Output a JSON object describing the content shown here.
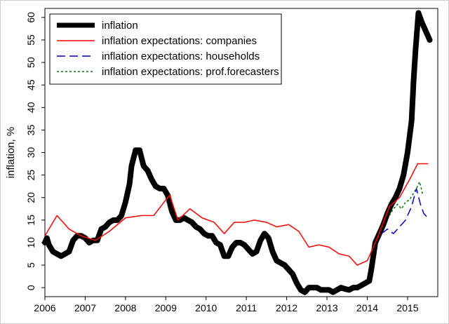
{
  "chart_data": {
    "type": "line",
    "title": "",
    "xlabel": "",
    "ylabel": "inflation, %",
    "xlim": [
      2006.0,
      2015.75
    ],
    "ylim": [
      -2,
      62
    ],
    "x_ticks": [
      2006,
      2007,
      2008,
      2009,
      2010,
      2011,
      2012,
      2013,
      2014,
      2015
    ],
    "x_tick_labels": [
      "2006",
      "2007",
      "2008",
      "2009",
      "2010",
      "2011",
      "2012",
      "2013",
      "2014",
      "2015"
    ],
    "y_ticks": [
      0,
      5,
      10,
      15,
      20,
      25,
      30,
      35,
      40,
      45,
      50,
      55,
      60
    ],
    "y_tick_labels": [
      "0",
      "5",
      "10",
      "15",
      "20",
      "25",
      "30",
      "35",
      "40",
      "45",
      "50",
      "55",
      "60"
    ],
    "grid": false,
    "legend_position": "top-left",
    "series": [
      {
        "name": "inflation",
        "label": "inflation",
        "color": "#000000",
        "style": "solid",
        "weight": "thick",
        "points": [
          [
            2006.0,
            10.0
          ],
          [
            2006.05,
            11.0
          ],
          [
            2006.1,
            9.5
          ],
          [
            2006.2,
            8.0
          ],
          [
            2006.3,
            7.5
          ],
          [
            2006.4,
            7.0
          ],
          [
            2006.5,
            7.5
          ],
          [
            2006.6,
            8.0
          ],
          [
            2006.7,
            10.5
          ],
          [
            2006.8,
            11.5
          ],
          [
            2006.9,
            11.5
          ],
          [
            2007.0,
            11.0
          ],
          [
            2007.1,
            10.0
          ],
          [
            2007.2,
            10.5
          ],
          [
            2007.3,
            10.5
          ],
          [
            2007.4,
            13.0
          ],
          [
            2007.5,
            13.5
          ],
          [
            2007.6,
            14.5
          ],
          [
            2007.7,
            15.0
          ],
          [
            2007.8,
            15.0
          ],
          [
            2007.9,
            16.0
          ],
          [
            2008.0,
            19.0
          ],
          [
            2008.1,
            23.0
          ],
          [
            2008.15,
            27.0
          ],
          [
            2008.25,
            30.5
          ],
          [
            2008.35,
            30.5
          ],
          [
            2008.45,
            27.0
          ],
          [
            2008.55,
            26.0
          ],
          [
            2008.65,
            24.0
          ],
          [
            2008.75,
            22.5
          ],
          [
            2008.85,
            22.0
          ],
          [
            2008.95,
            22.0
          ],
          [
            2009.05,
            20.5
          ],
          [
            2009.15,
            17.0
          ],
          [
            2009.25,
            15.0
          ],
          [
            2009.35,
            15.0
          ],
          [
            2009.45,
            15.5
          ],
          [
            2009.55,
            15.0
          ],
          [
            2009.65,
            14.5
          ],
          [
            2009.75,
            13.5
          ],
          [
            2009.85,
            13.0
          ],
          [
            2009.95,
            12.0
          ],
          [
            2010.05,
            11.5
          ],
          [
            2010.15,
            11.5
          ],
          [
            2010.25,
            10.0
          ],
          [
            2010.35,
            9.5
          ],
          [
            2010.45,
            7.0
          ],
          [
            2010.55,
            7.0
          ],
          [
            2010.65,
            9.0
          ],
          [
            2010.75,
            10.0
          ],
          [
            2010.85,
            10.0
          ],
          [
            2010.95,
            9.5
          ],
          [
            2011.05,
            8.5
          ],
          [
            2011.15,
            7.5
          ],
          [
            2011.25,
            8.0
          ],
          [
            2011.35,
            10.5
          ],
          [
            2011.45,
            12.0
          ],
          [
            2011.55,
            11.0
          ],
          [
            2011.65,
            8.0
          ],
          [
            2011.75,
            6.0
          ],
          [
            2011.85,
            5.5
          ],
          [
            2011.95,
            5.0
          ],
          [
            2012.05,
            4.0
          ],
          [
            2012.15,
            3.0
          ],
          [
            2012.25,
            1.0
          ],
          [
            2012.35,
            -0.5
          ],
          [
            2012.45,
            -1.0
          ],
          [
            2012.55,
            0.0
          ],
          [
            2012.65,
            0.0
          ],
          [
            2012.75,
            0.0
          ],
          [
            2012.85,
            -0.5
          ],
          [
            2012.95,
            -0.5
          ],
          [
            2013.05,
            -0.5
          ],
          [
            2013.15,
            -1.0
          ],
          [
            2013.25,
            -0.5
          ],
          [
            2013.35,
            0.0
          ],
          [
            2013.45,
            -0.3
          ],
          [
            2013.55,
            -0.5
          ],
          [
            2013.65,
            0.0
          ],
          [
            2013.75,
            0.0
          ],
          [
            2013.85,
            0.5
          ],
          [
            2013.95,
            1.0
          ],
          [
            2014.05,
            1.5
          ],
          [
            2014.1,
            4.0
          ],
          [
            2014.2,
            10.0
          ],
          [
            2014.3,
            12.0
          ],
          [
            2014.4,
            14.0
          ],
          [
            2014.5,
            16.5
          ],
          [
            2014.6,
            18.5
          ],
          [
            2014.7,
            20.0
          ],
          [
            2014.8,
            22.0
          ],
          [
            2014.9,
            25.0
          ],
          [
            2015.0,
            30.0
          ],
          [
            2015.1,
            37.0
          ],
          [
            2015.15,
            46.0
          ],
          [
            2015.2,
            53.0
          ],
          [
            2015.27,
            61.0
          ],
          [
            2015.35,
            59.0
          ],
          [
            2015.45,
            57.0
          ],
          [
            2015.55,
            55.0
          ]
        ]
      },
      {
        "name": "companies",
        "label": "inflation expectations: companies",
        "color": "#ff0000",
        "style": "solid",
        "weight": "thin",
        "points": [
          [
            2006.0,
            11.5
          ],
          [
            2006.3,
            16.0
          ],
          [
            2006.6,
            13.0
          ],
          [
            2006.9,
            11.5
          ],
          [
            2007.25,
            10.5
          ],
          [
            2007.6,
            12.5
          ],
          [
            2008.0,
            15.5
          ],
          [
            2008.4,
            16.0
          ],
          [
            2008.7,
            16.0
          ],
          [
            2009.0,
            19.5
          ],
          [
            2009.1,
            20.5
          ],
          [
            2009.3,
            15.0
          ],
          [
            2009.6,
            17.5
          ],
          [
            2009.9,
            15.5
          ],
          [
            2010.2,
            14.5
          ],
          [
            2010.45,
            12.0
          ],
          [
            2010.7,
            14.5
          ],
          [
            2010.95,
            14.5
          ],
          [
            2011.2,
            15.0
          ],
          [
            2011.5,
            14.5
          ],
          [
            2011.75,
            13.5
          ],
          [
            2012.05,
            14.0
          ],
          [
            2012.3,
            12.5
          ],
          [
            2012.55,
            9.0
          ],
          [
            2012.8,
            9.5
          ],
          [
            2013.05,
            9.0
          ],
          [
            2013.3,
            7.5
          ],
          [
            2013.55,
            7.0
          ],
          [
            2013.75,
            5.0
          ],
          [
            2014.0,
            6.0
          ],
          [
            2014.25,
            11.0
          ],
          [
            2014.55,
            18.0
          ],
          [
            2014.8,
            20.0
          ],
          [
            2015.05,
            24.0
          ],
          [
            2015.25,
            27.5
          ],
          [
            2015.5,
            27.5
          ]
        ]
      },
      {
        "name": "households",
        "label": "inflation expectations: households",
        "color": "#0000cc",
        "style": "long-dash",
        "weight": "thin",
        "points": [
          [
            2014.35,
            12.0
          ],
          [
            2014.5,
            13.0
          ],
          [
            2014.65,
            12.0
          ],
          [
            2014.8,
            13.5
          ],
          [
            2014.95,
            15.0
          ],
          [
            2015.1,
            18.0
          ],
          [
            2015.22,
            22.0
          ],
          [
            2015.32,
            18.5
          ],
          [
            2015.4,
            16.5
          ],
          [
            2015.5,
            15.5
          ]
        ]
      },
      {
        "name": "prof_forecasters",
        "label": "inflation expectations: prof.forecasters",
        "color": "#007700",
        "style": "dotted",
        "weight": "thin",
        "points": [
          [
            2014.55,
            16.0
          ],
          [
            2014.65,
            17.5
          ],
          [
            2014.75,
            18.5
          ],
          [
            2014.85,
            17.5
          ],
          [
            2014.95,
            19.0
          ],
          [
            2015.05,
            19.5
          ],
          [
            2015.15,
            21.0
          ],
          [
            2015.22,
            22.0
          ],
          [
            2015.3,
            23.5
          ],
          [
            2015.38,
            20.5
          ]
        ]
      }
    ]
  }
}
